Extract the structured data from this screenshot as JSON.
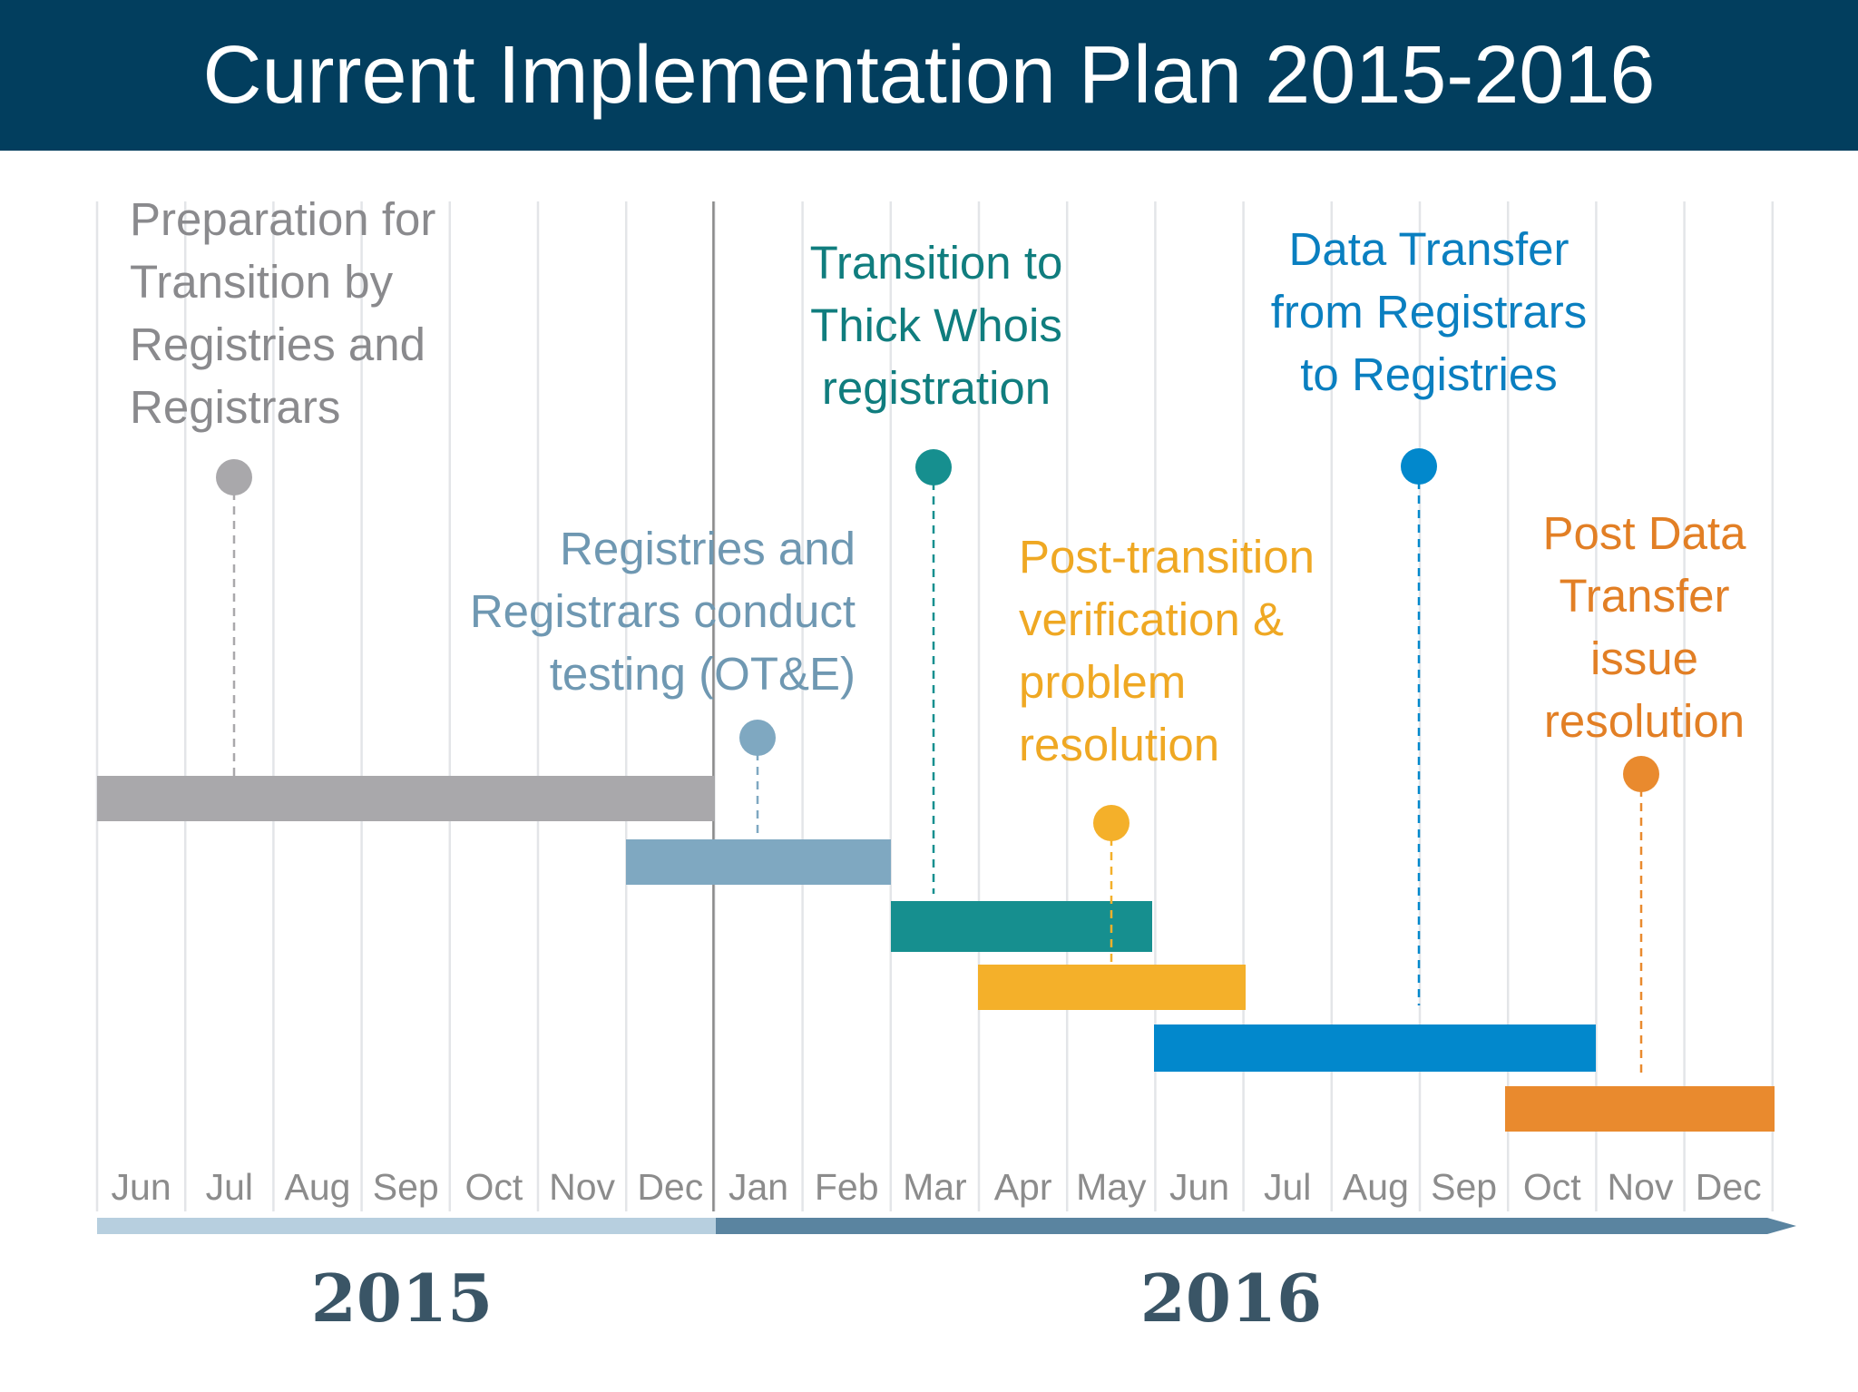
{
  "title": "Current Implementation Plan 2015-2016",
  "months": [
    "Jun",
    "Jul",
    "Aug",
    "Sep",
    "Oct",
    "Nov",
    "Dec",
    "Jan",
    "Feb",
    "Mar",
    "Apr",
    "May",
    "Jun",
    "Jul",
    "Aug",
    "Sep",
    "Oct",
    "Nov",
    "Dec"
  ],
  "years": [
    "2015",
    "2016"
  ],
  "colors": {
    "header": "#023e5e",
    "grid": "#e3e5e8",
    "divider": "#8a8a8a",
    "month_text": "#8c8c8c",
    "year_text": "#3a5566",
    "axis_2015": "#b7cfdf",
    "axis_2016": "#5a84a0"
  },
  "phases": [
    {
      "label": [
        "Preparation for",
        "Transition by",
        "Registries and",
        "Registrars"
      ],
      "color": "#a9a8ab",
      "text_color": "#8a8a8d",
      "start": "2015-06",
      "end": "2015-12"
    },
    {
      "label": [
        "Registries and",
        "Registrars conduct",
        "testing (OT&E)"
      ],
      "color": "#7fa8c1",
      "text_color": "#6f98b2",
      "start": "2015-12",
      "end": "2016-02"
    },
    {
      "label": [
        "Transition to",
        "Thick Whois",
        "registration"
      ],
      "color": "#168f8f",
      "text_color": "#107d7e",
      "start": "2016-03",
      "end": "2016-05"
    },
    {
      "label": [
        "Post-transition",
        "verification &",
        "problem",
        "resolution"
      ],
      "color": "#f4b02a",
      "text_color": "#efa823",
      "start": "2016-04",
      "end": "2016-06"
    },
    {
      "label": [
        "Data Transfer",
        "from Registrars",
        "to Registries"
      ],
      "color": "#0288cc",
      "text_color": "#0a7fc0",
      "start": "2016-06",
      "end": "2016-10"
    },
    {
      "label": [
        "Post Data",
        "Transfer",
        "issue",
        "resolution"
      ],
      "color": "#e98a2e",
      "text_color": "#e27f25",
      "start": "2016-10",
      "end": "2016-12"
    }
  ]
}
